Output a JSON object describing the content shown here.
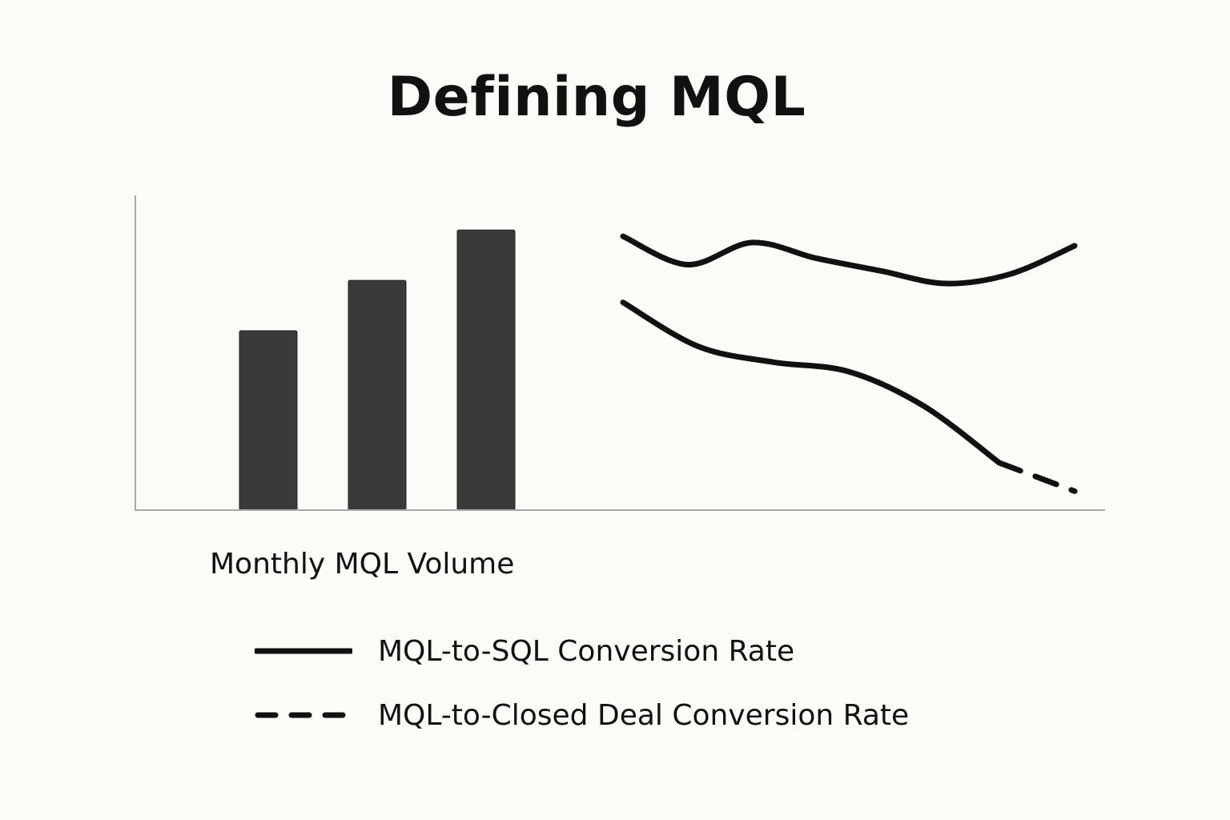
{
  "chart_data": {
    "type": "bar",
    "title": "Defining MQL",
    "xlabel": "",
    "ylabel": "",
    "grid": false,
    "ylim": [
      0,
      100
    ],
    "bars": {
      "name": "Monthly MQL Volume",
      "categories": [
        "",
        "",
        ""
      ],
      "values": [
        57,
        73,
        89
      ],
      "color": "#3a3a3a"
    },
    "lines": {
      "x": [
        0,
        1,
        2,
        3,
        4,
        5,
        6,
        7
      ],
      "series": [
        {
          "name": "MQL-to-SQL Conversion Rate",
          "style": "solid",
          "color": "#111111",
          "values": [
            87,
            78,
            85,
            80,
            76,
            72,
            75,
            84
          ]
        },
        {
          "name": "MQL-to-Closed Deal Conversion Rate",
          "style": "solid-then-dashed",
          "dash_from_index": 5,
          "color": "#111111",
          "values": [
            66,
            52,
            47,
            44,
            33,
            15,
            6,
            null
          ]
        }
      ]
    },
    "legend": {
      "placement": "bottom-left",
      "entries": [
        {
          "label": "MQL-to-SQL Conversion Rate",
          "style": "solid"
        },
        {
          "label": "MQL-to-Closed Deal Conversion Rate",
          "style": "dashed"
        }
      ]
    }
  }
}
